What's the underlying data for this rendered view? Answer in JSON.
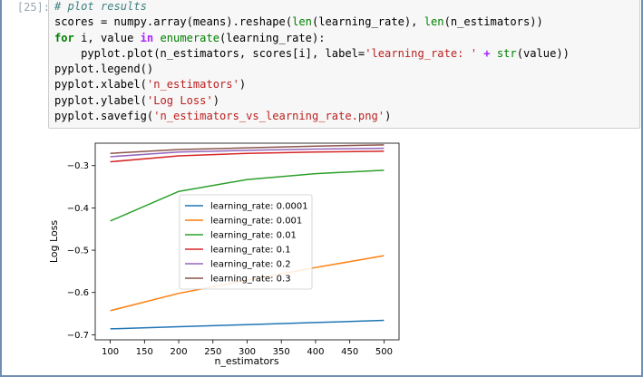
{
  "cell": {
    "prompt": "[25]:"
  },
  "code_lines": [
    [
      {
        "t": "# plot results",
        "c": "comment"
      }
    ],
    [
      {
        "t": "scores = numpy.array(means).reshape(",
        "c": ""
      },
      {
        "t": "len",
        "c": "bi"
      },
      {
        "t": "(learning_rate), ",
        "c": ""
      },
      {
        "t": "len",
        "c": "bi"
      },
      {
        "t": "(n_estimators))",
        "c": ""
      }
    ],
    [
      {
        "t": "for",
        "c": "kw"
      },
      {
        "t": " i, value ",
        "c": ""
      },
      {
        "t": "in",
        "c": "op"
      },
      {
        "t": " ",
        "c": ""
      },
      {
        "t": "enumerate",
        "c": "bi"
      },
      {
        "t": "(learning_rate):",
        "c": ""
      }
    ],
    [
      {
        "t": "    pyplot.plot(n_estimators, scores[i], label=",
        "c": ""
      },
      {
        "t": "'learning_rate: '",
        "c": "str"
      },
      {
        "t": " + ",
        "c": "op"
      },
      {
        "t": "str",
        "c": "bi"
      },
      {
        "t": "(value))",
        "c": ""
      }
    ],
    [
      {
        "t": "pyplot.legend()",
        "c": ""
      }
    ],
    [
      {
        "t": "pyplot.xlabel(",
        "c": ""
      },
      {
        "t": "'n_estimators'",
        "c": "str"
      },
      {
        "t": ")",
        "c": ""
      }
    ],
    [
      {
        "t": "pyplot.ylabel(",
        "c": ""
      },
      {
        "t": "'Log Loss'",
        "c": "str"
      },
      {
        "t": ")",
        "c": ""
      }
    ],
    [
      {
        "t": "pyplot.savefig(",
        "c": ""
      },
      {
        "t": "'n_estimators_vs_learning_rate.png'",
        "c": "str"
      },
      {
        "t": ")",
        "c": ""
      }
    ]
  ],
  "chart_data": {
    "type": "line",
    "x": [
      100,
      200,
      300,
      400,
      500
    ],
    "xlabel": "n_estimators",
    "ylabel": "Log Loss",
    "xlim": [
      78,
      522
    ],
    "ylim": [
      -0.712,
      -0.247
    ],
    "xticks": [
      100,
      150,
      200,
      250,
      300,
      350,
      400,
      450,
      500
    ],
    "yticks": [
      -0.7,
      -0.6,
      -0.5,
      -0.4,
      -0.3
    ],
    "xtick_labels": [
      "100",
      "150",
      "200",
      "250",
      "300",
      "350",
      "400",
      "450",
      "500"
    ],
    "ytick_labels": [
      "−0.7",
      "−0.6",
      "−0.5",
      "−0.4",
      "−0.3"
    ],
    "legend_position": "center-left",
    "grid": false,
    "series": [
      {
        "name": "learning_rate: 0.0001",
        "color": "#1f77b4",
        "values": [
          -0.686,
          -0.681,
          -0.676,
          -0.671,
          -0.666
        ]
      },
      {
        "name": "learning_rate: 0.001",
        "color": "#ff7f0e",
        "values": [
          -0.643,
          -0.602,
          -0.571,
          -0.541,
          -0.513
        ]
      },
      {
        "name": "learning_rate: 0.01",
        "color": "#2ca02c",
        "values": [
          -0.431,
          -0.361,
          -0.333,
          -0.319,
          -0.311
        ]
      },
      {
        "name": "learning_rate: 0.1",
        "color": "#d62728",
        "values": [
          -0.291,
          -0.277,
          -0.271,
          -0.268,
          -0.266
        ]
      },
      {
        "name": "learning_rate: 0.2",
        "color": "#9467bd",
        "values": [
          -0.279,
          -0.268,
          -0.264,
          -0.261,
          -0.259
        ]
      },
      {
        "name": "learning_rate: 0.3",
        "color": "#8c564b",
        "values": [
          -0.271,
          -0.262,
          -0.258,
          -0.254,
          -0.251
        ]
      }
    ]
  }
}
